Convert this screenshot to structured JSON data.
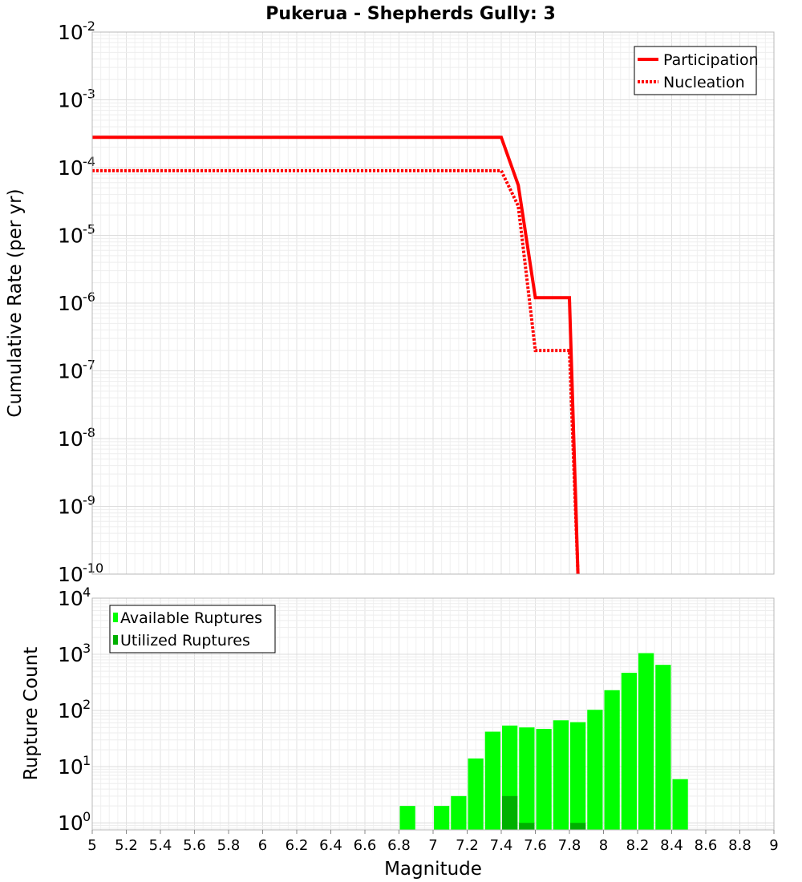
{
  "chart_data": [
    {
      "type": "line",
      "title": "Pukerua - Shepherds Gully: 3",
      "xlabel": "",
      "ylabel": "Cumulative Rate (per yr)",
      "xlim": [
        5,
        9
      ],
      "ylim": [
        1e-10,
        0.01
      ],
      "y_scale": "log",
      "y_tick_exponents": [
        "-2",
        "-3",
        "-4",
        "-5",
        "-6",
        "-7",
        "-8",
        "-9",
        "-10"
      ],
      "grid": true,
      "legend_position": "top-right",
      "series": [
        {
          "name": "Participation",
          "color": "#ff0000",
          "style": "solid",
          "x": [
            5.0,
            7.4,
            7.5,
            7.6,
            7.8,
            7.85
          ],
          "y": [
            0.00028,
            0.00028,
            5.5e-05,
            1.2e-06,
            1.2e-06,
            1e-10
          ]
        },
        {
          "name": "Nucleation",
          "color": "#ff0000",
          "style": "dotted",
          "x": [
            5.0,
            7.4,
            7.5,
            7.6,
            7.8,
            7.85
          ],
          "y": [
            9e-05,
            9e-05,
            2.7e-05,
            2e-07,
            2e-07,
            1e-10
          ]
        }
      ]
    },
    {
      "type": "bar",
      "xlabel": "Magnitude",
      "ylabel": "Rupture Count",
      "xlim": [
        5,
        9
      ],
      "ylim": [
        0.75,
        10000
      ],
      "y_scale": "log",
      "y_tick_exponents": [
        "4",
        "3",
        "2",
        "1",
        "0"
      ],
      "x_tick_labels": [
        "5",
        "5.2",
        "5.4",
        "5.6",
        "5.8",
        "6",
        "6.2",
        "6.4",
        "6.6",
        "6.8",
        "7",
        "7.2",
        "7.4",
        "7.6",
        "7.8",
        "8",
        "8.2",
        "8.4",
        "8.6",
        "8.8",
        "9"
      ],
      "grid": true,
      "legend_position": "top-left",
      "series": [
        {
          "name": "Available Ruptures",
          "color": "#00ff00",
          "x": [
            6.85,
            7.05,
            7.15,
            7.25,
            7.35,
            7.45,
            7.55,
            7.65,
            7.75,
            7.85,
            7.95,
            8.05,
            8.15,
            8.25,
            8.35,
            8.45
          ],
          "values": [
            2,
            2,
            3,
            14,
            42,
            54,
            50,
            47,
            67,
            62,
            103,
            230,
            470,
            1050,
            650,
            6
          ]
        },
        {
          "name": "Utilized Ruptures",
          "color": "#00b000",
          "x": [
            7.45,
            7.55,
            7.85
          ],
          "values": [
            3,
            1,
            1
          ]
        }
      ]
    }
  ]
}
